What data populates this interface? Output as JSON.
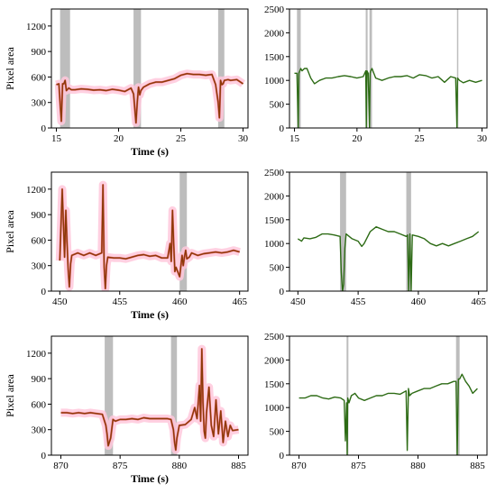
{
  "chart_data": [
    {
      "type": "line",
      "panel": "row1-left",
      "xlabel": "Time (s)",
      "ylabel": "Pixel area",
      "xlim": [
        14.6,
        30.4
      ],
      "ylim": [
        0,
        1400
      ],
      "xticks": [
        15,
        20,
        25,
        30
      ],
      "yticks": [
        0,
        300,
        600,
        900,
        1200
      ],
      "color": "#8b3a08",
      "band_color": "#ffc8dc",
      "shaded_x": [
        [
          15.3,
          16.1
        ],
        [
          21.2,
          21.8
        ],
        [
          28.0,
          28.5
        ]
      ],
      "series": [
        {
          "x": [
            15.0,
            15.2,
            15.3,
            15.4,
            15.5,
            15.6,
            15.7,
            15.8,
            16.0,
            16.2,
            16.5,
            17,
            17.5,
            18,
            18.5,
            19,
            19.5,
            20,
            20.5,
            21,
            21.2,
            21.4,
            21.5,
            21.6,
            21.7,
            21.8,
            22,
            22.5,
            23,
            23.5,
            24,
            24.5,
            25,
            25.5,
            26,
            26.5,
            27,
            27.5,
            27.8,
            28.0,
            28.1,
            28.2,
            28.3,
            28.4,
            28.5,
            28.8,
            29,
            29.5,
            30
          ],
          "y": [
            510,
            520,
            280,
            80,
            520,
            520,
            560,
            440,
            470,
            450,
            450,
            460,
            455,
            445,
            450,
            440,
            455,
            445,
            430,
            470,
            400,
            60,
            300,
            480,
            390,
            440,
            480,
            520,
            540,
            540,
            560,
            580,
            620,
            640,
            630,
            630,
            620,
            630,
            510,
            300,
            120,
            560,
            510,
            520,
            560,
            570,
            560,
            570,
            520
          ]
        }
      ]
    },
    {
      "type": "line",
      "panel": "row1-right",
      "xlim": [
        14.6,
        30.4
      ],
      "ylim": [
        0,
        2500
      ],
      "xticks": [
        15,
        20,
        25,
        30
      ],
      "yticks": [
        0,
        500,
        1000,
        1500,
        2000,
        2500
      ],
      "color": "#2d6b15",
      "shaded_x": [
        [
          15.2,
          15.5
        ],
        [
          20.7,
          20.85
        ],
        [
          21.0,
          21.2
        ],
        [
          28.0,
          28.1
        ]
      ],
      "series": [
        {
          "x": [
            15.0,
            15.2,
            15.3,
            15.35,
            15.5,
            15.6,
            15.8,
            16,
            16.3,
            16.6,
            17,
            17.5,
            18,
            18.5,
            19,
            19.5,
            20,
            20.5,
            20.7,
            20.75,
            20.8,
            20.9,
            21.0,
            21.05,
            21.1,
            21.2,
            21.5,
            22,
            22.5,
            23,
            23.5,
            24,
            24.5,
            25,
            25.5,
            26,
            26.5,
            27,
            27.5,
            27.9,
            28.0,
            28.05,
            28.2,
            28.5,
            29,
            29.5,
            30
          ],
          "y": [
            1150,
            1150,
            0,
            1150,
            1250,
            1200,
            1250,
            1250,
            1050,
            930,
            1000,
            1050,
            1050,
            1080,
            1100,
            1080,
            1050,
            1080,
            1200,
            0,
            1200,
            1150,
            0,
            1150,
            1200,
            1250,
            1050,
            1000,
            1050,
            1080,
            1080,
            1100,
            1050,
            1120,
            1100,
            1050,
            1080,
            960,
            1080,
            1050,
            0,
            1050,
            1000,
            950,
            1000,
            960,
            1000
          ]
        }
      ]
    },
    {
      "type": "line",
      "panel": "row2-left",
      "xlabel": "Time (s)",
      "ylabel": "Pixel area",
      "xlim": [
        449.3,
        465.7
      ],
      "ylim": [
        0,
        1400
      ],
      "xticks": [
        450,
        455,
        460,
        465
      ],
      "yticks": [
        0,
        300,
        600,
        900,
        1200
      ],
      "color": "#8b3a08",
      "band_color": "#ffc8dc",
      "shaded_x": [
        [
          460.0,
          460.6
        ]
      ],
      "series": [
        {
          "x": [
            450.0,
            450.2,
            450.4,
            450.5,
            450.6,
            450.7,
            450.8,
            450.9,
            451,
            451.5,
            452,
            452.5,
            453,
            453.5,
            453.6,
            453.7,
            453.8,
            453.9,
            454.0,
            454.5,
            455,
            455.5,
            456,
            456.5,
            457,
            457.5,
            458,
            458.5,
            459,
            459.2,
            459.3,
            459.4,
            459.5,
            459.6,
            459.7,
            460,
            460.2,
            460.3,
            460.4,
            460.5,
            460.6,
            460.8,
            461,
            461.5,
            462,
            462.5,
            463,
            463.5,
            464,
            464.5,
            465
          ],
          "y": [
            360,
            1200,
            400,
            950,
            580,
            250,
            50,
            320,
            420,
            450,
            420,
            450,
            420,
            450,
            1250,
            280,
            30,
            300,
            400,
            390,
            390,
            380,
            400,
            420,
            430,
            410,
            420,
            390,
            390,
            560,
            350,
            950,
            560,
            230,
            280,
            170,
            420,
            300,
            400,
            480,
            380,
            400,
            450,
            420,
            440,
            450,
            460,
            450,
            460,
            480,
            460
          ]
        }
      ]
    },
    {
      "type": "line",
      "panel": "row2-right",
      "xlim": [
        449.3,
        465.7
      ],
      "ylim": [
        0,
        2500
      ],
      "xticks": [
        450,
        455,
        460,
        465
      ],
      "yticks": [
        0,
        500,
        1000,
        1500,
        2000,
        2500
      ],
      "color": "#2d6b15",
      "shaded_x": [
        [
          453.5,
          454.0
        ],
        [
          459.0,
          459.4
        ]
      ],
      "series": [
        {
          "x": [
            450,
            450.3,
            450.5,
            451,
            451.5,
            452,
            452.5,
            453,
            453.5,
            453.6,
            453.7,
            453.8,
            453.9,
            454.0,
            454.5,
            455,
            455.3,
            455.5,
            456,
            456.5,
            457,
            457.5,
            458,
            458.5,
            459,
            459.1,
            459.2,
            459.3,
            459.4,
            459.5,
            460,
            460.5,
            461,
            461.5,
            462,
            462.5,
            463,
            463.5,
            464,
            464.5,
            465
          ],
          "y": [
            1100,
            1050,
            1120,
            1100,
            1130,
            1200,
            1200,
            1180,
            1150,
            400,
            0,
            150,
            900,
            1200,
            1100,
            1050,
            940,
            1000,
            1250,
            1350,
            1300,
            1250,
            1250,
            1200,
            1150,
            1180,
            0,
            1200,
            0,
            1180,
            1150,
            1100,
            1000,
            950,
            1000,
            950,
            1000,
            1050,
            1100,
            1150,
            1250
          ]
        }
      ]
    },
    {
      "type": "line",
      "panel": "row3-left",
      "xlabel": "Time (s)",
      "ylabel": "Pixel area",
      "xlim": [
        869.2,
        885.8
      ],
      "ylim": [
        0,
        1400
      ],
      "xticks": [
        870,
        875,
        880,
        885
      ],
      "yticks": [
        0,
        300,
        600,
        900,
        1200
      ],
      "color": "#8b3a08",
      "band_color": "#ffc8dc",
      "shaded_x": [
        [
          873.7,
          874.4
        ],
        [
          879.3,
          879.8
        ]
      ],
      "series": [
        {
          "x": [
            870,
            870.5,
            871,
            871.5,
            872,
            872.5,
            873,
            873.5,
            873.8,
            873.9,
            874.0,
            874.2,
            874.4,
            874.6,
            875,
            875.5,
            876,
            876.5,
            877,
            877.5,
            878,
            878.5,
            879,
            879.3,
            879.5,
            879.6,
            879.7,
            879.8,
            880,
            880.5,
            881,
            881.3,
            881.5,
            881.7,
            881.8,
            881.9,
            882.0,
            882.1,
            882.2,
            882.3,
            882.5,
            882.7,
            882.9,
            883.1,
            883.3,
            883.5,
            883.7,
            883.9,
            884.1,
            884.3,
            884.5,
            885
          ],
          "y": [
            500,
            500,
            490,
            500,
            490,
            500,
            490,
            480,
            350,
            250,
            110,
            200,
            420,
            400,
            420,
            420,
            430,
            420,
            440,
            430,
            430,
            430,
            430,
            420,
            300,
            150,
            60,
            200,
            350,
            360,
            420,
            560,
            430,
            820,
            400,
            1250,
            620,
            280,
            200,
            500,
            800,
            350,
            220,
            650,
            250,
            520,
            150,
            400,
            220,
            350,
            290,
            300
          ]
        }
      ]
    },
    {
      "type": "line",
      "panel": "row3-right",
      "xlim": [
        869.2,
        885.8
      ],
      "ylim": [
        0,
        2500
      ],
      "xticks": [
        870,
        875,
        880,
        885
      ],
      "yticks": [
        0,
        500,
        1000,
        1500,
        2000,
        2500
      ],
      "color": "#2d6b15",
      "shaded_x": [
        [
          874.0,
          874.15
        ],
        [
          883.2,
          883.5
        ]
      ],
      "series": [
        {
          "x": [
            870,
            870.5,
            871,
            871.5,
            872,
            872.5,
            873,
            873.5,
            873.8,
            873.9,
            874.0,
            874.05,
            874.1,
            874.2,
            874.4,
            874.7,
            875,
            875.5,
            876,
            876.5,
            877,
            877.5,
            878,
            878.5,
            879,
            879.1,
            879.2,
            879.3,
            879.5,
            880,
            880.5,
            881,
            881.5,
            882,
            882.5,
            883,
            883.2,
            883.3,
            883.4,
            883.5,
            883.7,
            884,
            884.3,
            884.6,
            885
          ],
          "y": [
            1200,
            1200,
            1250,
            1250,
            1200,
            1180,
            1220,
            1200,
            1150,
            300,
            1100,
            0,
            1200,
            1100,
            1250,
            1300,
            1200,
            1150,
            1200,
            1250,
            1250,
            1300,
            1300,
            1280,
            1350,
            100,
            1400,
            1250,
            1300,
            1350,
            1400,
            1400,
            1450,
            1500,
            1500,
            1550,
            1550,
            0,
            1600,
            1600,
            1700,
            1550,
            1450,
            1300,
            1400
          ]
        }
      ]
    }
  ]
}
